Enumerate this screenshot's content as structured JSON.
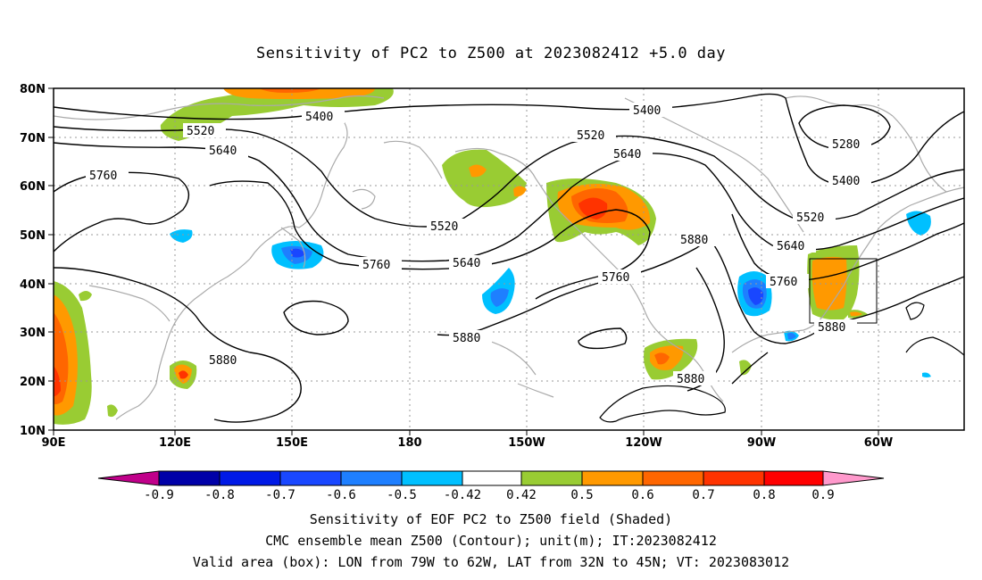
{
  "title": "Sensitivity of PC2 to Z500 at 2023082412 +5.0 day",
  "lat_labels": [
    "80N",
    "70N",
    "60N",
    "50N",
    "40N",
    "30N",
    "20N",
    "10N"
  ],
  "lon_labels": [
    "90E",
    "120E",
    "150E",
    "180",
    "150W",
    "120W",
    "90W",
    "60W"
  ],
  "contours": [
    {
      "value": "5280",
      "color": "#000000"
    },
    {
      "value": "5400",
      "color": "#000000"
    },
    {
      "value": "5520",
      "color": "#000000"
    },
    {
      "value": "5640",
      "color": "#000000"
    },
    {
      "value": "5760",
      "color": "#000000"
    },
    {
      "value": "5880",
      "color": "#000000"
    }
  ],
  "colorbar": {
    "colors": [
      "#c0008a",
      "#0000a8",
      "#0019e6",
      "#1947ff",
      "#1e7fff",
      "#00c0ff",
      "#ffffff",
      "#99cc33",
      "#ff9900",
      "#ff6600",
      "#ff3300",
      "#ff0000",
      "#ff99cc"
    ],
    "labels": [
      "-0.9",
      "-0.8",
      "-0.7",
      "-0.6",
      "-0.5",
      "-0.42",
      "0.42",
      "0.5",
      "0.6",
      "0.7",
      "0.8",
      "0.9"
    ]
  },
  "captions": [
    "Sensitivity of EOF PC2 to Z500 field (Shaded)",
    "CMC ensemble mean Z500 (Contour); unit(m); IT:2023082412",
    "Valid area (box): LON from 79W to 62W, LAT from 32N to 45N; VT: 2023083012"
  ],
  "colors": {
    "coast": "#aaaaaa",
    "grid": "#999999",
    "frame": "#000000"
  }
}
